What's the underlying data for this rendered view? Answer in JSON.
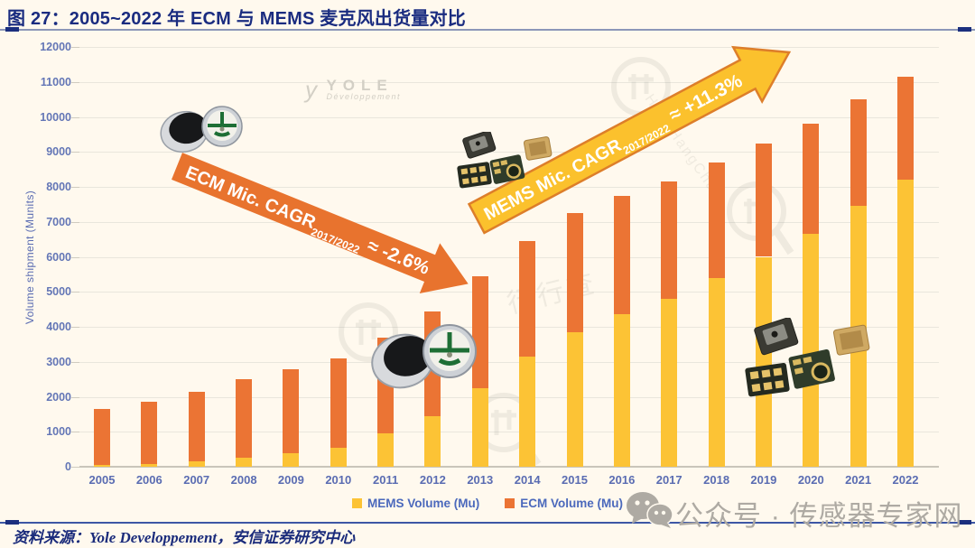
{
  "header": {
    "title": "图 27：2005~2022 年 ECM 与 MEMS 麦克风出货量对比"
  },
  "footer": {
    "source": "资料来源：Yole Developpement，安信证券研究中心"
  },
  "watermarks": {
    "yole_name": "YOLE",
    "yole_sub": "Développement",
    "yole_mark": "y",
    "hhc_cn": "行行查",
    "hhc_latin": "HangHangCha",
    "wechat_text": "公众号 · 传感器专家网"
  },
  "annotations": {
    "ecm": {
      "prefix": "ECM Mic. CAGR",
      "sub": "2017/2022",
      "value": "≈ -2.6%"
    },
    "mems": {
      "prefix": "MEMS Mic. CAGR",
      "sub": "2017/2022",
      "value": "≈ +11.3%"
    }
  },
  "legend": [
    {
      "label": "MEMS Volume (Mu)",
      "color": "#FCC335"
    },
    {
      "label": "ECM Volume (Mu)",
      "color": "#EB7434"
    }
  ],
  "colors": {
    "background": "#FFF9EE",
    "mems_bar": "#FCC335",
    "ecm_bar": "#EB7434",
    "title_blue": "#1A2C80",
    "axis_blue": "#5A6CB2",
    "arrow_orange": "#E8732E",
    "arrow_yellow": "#FBC12D"
  },
  "chart_data": {
    "type": "bar",
    "stacked": true,
    "title": "2005~2022 ECM vs MEMS microphone shipments",
    "ylabel": "Volume shipment (Munits)",
    "xlabel": "",
    "ylim": [
      0,
      12000
    ],
    "ytick_step": 1000,
    "grid": true,
    "legend_position": "bottom",
    "categories": [
      "2005",
      "2006",
      "2007",
      "2008",
      "2009",
      "2010",
      "2011",
      "2012",
      "2013",
      "2014",
      "2015",
      "2016",
      "2017",
      "2018",
      "2019",
      "2020",
      "2021",
      "2022"
    ],
    "series": [
      {
        "name": "MEMS Volume (Mu)",
        "color": "#FCC335",
        "values": [
          50,
          80,
          150,
          260,
          380,
          550,
          950,
          1450,
          2250,
          3150,
          3850,
          4350,
          4800,
          5400,
          6000,
          6650,
          7450,
          8200
        ]
      },
      {
        "name": "ECM Volume (Mu)",
        "color": "#EB7434",
        "values": [
          1600,
          1770,
          2000,
          2240,
          2420,
          2550,
          2750,
          3000,
          3200,
          3300,
          3400,
          3400,
          3350,
          3300,
          3250,
          3150,
          3050,
          2950
        ]
      }
    ],
    "totals": [
      1650,
      1850,
      2150,
      2500,
      2800,
      3100,
      3700,
      4450,
      5450,
      6450,
      7250,
      7750,
      8150,
      8700,
      9250,
      9800,
      10500,
      11150
    ]
  }
}
